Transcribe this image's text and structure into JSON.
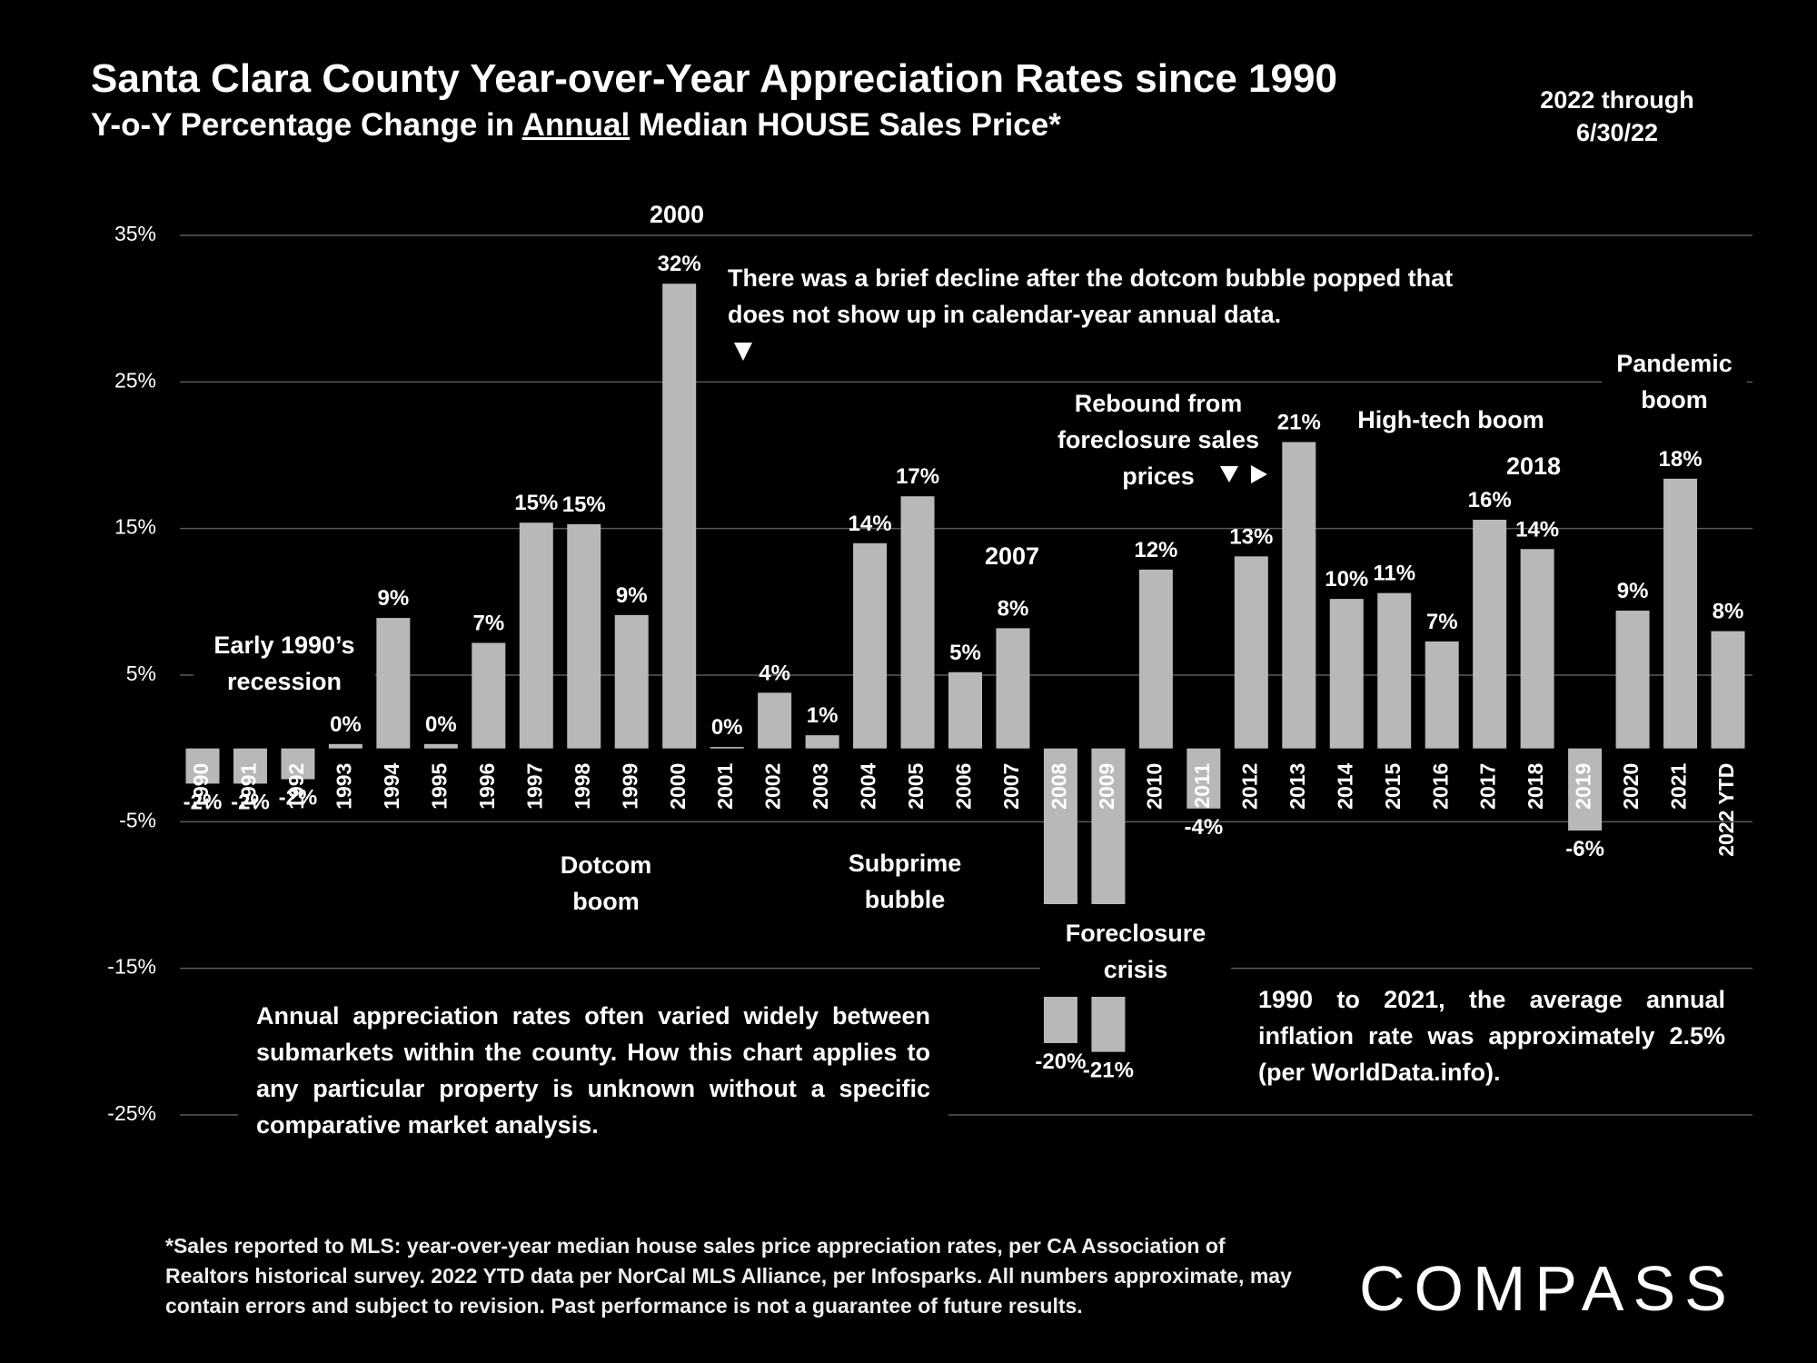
{
  "chart_data": {
    "type": "bar",
    "title": "Santa Clara County Year-over-Year Appreciation Rates since 1990",
    "subtitle": [
      "Y-o-Y Percentage Change in ",
      "Annual",
      " Median HOUSE Sales Price*"
    ],
    "date_note": "2022 through 6/30/22",
    "categories": [
      "1990",
      "1991",
      "1992",
      "1993",
      "1994",
      "1995",
      "1996",
      "1997",
      "1998",
      "1999",
      "2000",
      "2001",
      "2002",
      "2003",
      "2004",
      "2005",
      "2006",
      "2007",
      "2008",
      "2009",
      "2010",
      "2011",
      "2012",
      "2013",
      "2014",
      "2015",
      "2016",
      "2017",
      "2018",
      "2019",
      "2020",
      "2021",
      "2022 YTD"
    ],
    "values": [
      -2.4,
      -2.4,
      -2.1,
      0.3,
      8.9,
      0.3,
      7.2,
      15.4,
      15.3,
      9.1,
      31.7,
      0.1,
      3.8,
      0.9,
      14.0,
      17.2,
      5.2,
      8.2,
      -20.1,
      -20.7,
      12.2,
      -4.1,
      13.1,
      20.9,
      10.2,
      10.6,
      7.3,
      15.6,
      13.6,
      -5.6,
      9.4,
      18.4,
      8.0
    ],
    "value_labels": [
      "-2%",
      "-2%",
      "-2%",
      "0%",
      "9%",
      "0%",
      "7%",
      "15%",
      "15%",
      "9%",
      "32%",
      "0%",
      "4%",
      "1%",
      "14%",
      "17%",
      "5%",
      "8%",
      "-20%",
      "-21%",
      "12%",
      "-4%",
      "13%",
      "21%",
      "10%",
      "11%",
      "7%",
      "16%",
      "14%",
      "-6%",
      "9%",
      "18%",
      "8%"
    ],
    "color": "#b8b8b8",
    "ylim": [
      -25,
      35
    ],
    "yticks": [
      {
        "value": -25,
        "label": "-25%"
      },
      {
        "value": -15,
        "label": "-15%"
      },
      {
        "value": -5,
        "label": "-5%"
      },
      {
        "value": 5,
        "label": "5%"
      },
      {
        "value": 15,
        "label": "15%"
      },
      {
        "value": 25,
        "label": "25%"
      },
      {
        "value": 35,
        "label": "35%"
      }
    ],
    "grid": true,
    "annotations": [
      "2000",
      "There was a brief decline after the dotcom bubble popped that does not show up in calendar-year annual data.",
      "Early 1990’s recession",
      "Dotcom boom",
      "Subprime bubble",
      "2007",
      "Rebound from foreclosure sales prices",
      "High-tech boom",
      "2018",
      "Pandemic boom",
      "Foreclosure crisis",
      "Annual appreciation rates often varied widely between submarkets within the county. How this chart applies to any particular property is unknown without a specific comparative market analysis.",
      "1990 to 2021, the average annual inflation rate was approximately 2.5% (per WorldData.info)."
    ],
    "footnote": "*Sales reported to MLS: year-over-year median house sales price appreciation rates, per CA Association of Realtors historical survey. 2022 YTD data per NorCal MLS Alliance, per Infosparks. All numbers approximate, may contain errors and subject to revision. Past performance is not a guarantee of future results.",
    "logo": "COMPASS"
  }
}
